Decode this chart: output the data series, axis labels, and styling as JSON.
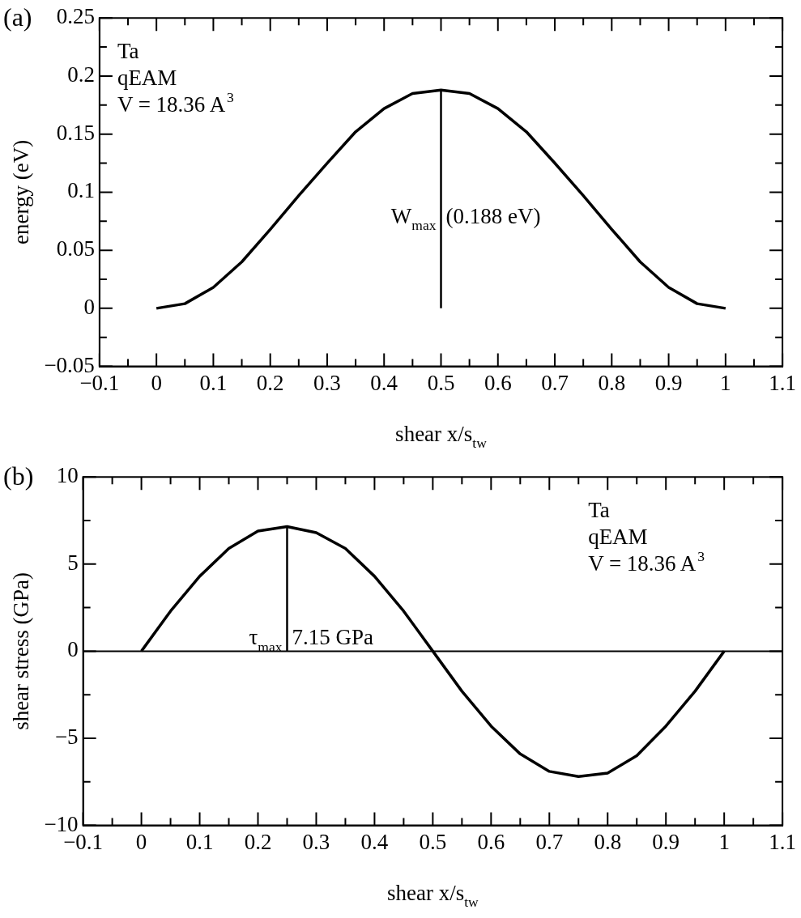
{
  "chart_data": [
    {
      "type": "line",
      "title": "(a)",
      "xlabel": "shear x/s$_{tw}$",
      "ylabel": "energy (eV)",
      "legend": false,
      "grid": false,
      "marker": "none",
      "line_style": "solid",
      "series": [
        {
          "color": "#000000",
          "x": [
            0,
            0.05,
            0.1,
            0.15,
            0.2,
            0.25,
            0.3,
            0.35,
            0.4,
            0.45,
            0.5,
            0.55,
            0.6,
            0.65,
            0.7,
            0.75,
            0.8,
            0.85,
            0.9,
            0.95,
            1
          ],
          "values": [
            0,
            0.004,
            0.018,
            0.04,
            0.068,
            0.097,
            0.125,
            0.152,
            0.172,
            0.185,
            0.188,
            0.185,
            0.172,
            0.152,
            0.125,
            0.097,
            0.068,
            0.04,
            0.018,
            0.004,
            0
          ]
        },
        {
          "color": "#000000",
          "x": [
            0.5,
            0.5
          ],
          "values": [
            0,
            0.188
          ]
        }
      ],
      "xlim": [
        -0.1,
        1.1
      ],
      "xticks": [
        -0.1,
        {
          "value": -0.05,
          "label": null
        },
        0,
        {
          "value": 0.05,
          "label": null
        },
        0.1,
        {
          "value": 0.15,
          "label": null
        },
        0.2,
        {
          "value": 0.25,
          "label": null
        },
        0.3,
        {
          "value": 0.35,
          "label": null
        },
        0.4,
        {
          "value": 0.45,
          "label": null
        },
        0.5,
        {
          "value": 0.55,
          "label": null
        },
        0.6,
        {
          "value": 0.65,
          "label": null
        },
        0.7,
        {
          "value": 0.75,
          "label": null
        },
        0.8,
        {
          "value": 0.85,
          "label": null
        },
        0.9,
        {
          "value": 0.95,
          "label": null
        },
        1,
        {
          "value": 1.05,
          "label": null
        },
        1.1
      ],
      "ylim": [
        -0.05,
        0.25
      ],
      "yticks": [
        -0.05,
        {
          "value": -0.025,
          "label": null
        },
        0,
        {
          "value": 0.025,
          "label": null
        },
        0.05,
        {
          "value": 0.075,
          "label": null
        },
        0.1,
        {
          "value": 0.125,
          "label": null
        },
        0.15,
        {
          "value": 0.175,
          "label": null
        },
        0.2,
        {
          "value": 0.225,
          "label": null
        },
        0.25
      ],
      "annotations": [
        "Ta",
        "qEAM",
        "V = 18.36 A$^{3}$",
        "W$_{max}$",
        "(0.188 eV)"
      ]
    },
    {
      "type": "line",
      "title": "(b)",
      "xlabel": "shear x/s$_{tw}$",
      "ylabel": "shear stress (GPa)",
      "legend": false,
      "grid": false,
      "marker": "none",
      "line_style": "solid",
      "series": [
        {
          "color": "#000000",
          "x": [
            0,
            0.05,
            0.1,
            0.15,
            0.2,
            0.25,
            0.3,
            0.35,
            0.4,
            0.45,
            0.5,
            0.55,
            0.6,
            0.65,
            0.7,
            0.75,
            0.8,
            0.85,
            0.9,
            0.95,
            1
          ],
          "values": [
            0,
            2.3,
            4.3,
            5.9,
            6.9,
            7.15,
            6.8,
            5.9,
            4.3,
            2.3,
            0,
            -2.3,
            -4.3,
            -5.9,
            -6.9,
            -7.2,
            -7,
            -6,
            -4.3,
            -2.3,
            0
          ]
        },
        {
          "color": "#000000",
          "x": [
            0.25,
            0.25
          ],
          "values": [
            0,
            7.15
          ]
        }
      ],
      "ref_lines": [
        {
          "axis": "y",
          "value": 0,
          "color": "#000000"
        }
      ],
      "xlim": [
        -0.1,
        1.1
      ],
      "xticks": [
        -0.1,
        {
          "value": -0.05,
          "label": null
        },
        0,
        {
          "value": 0.05,
          "label": null
        },
        0.1,
        {
          "value": 0.15,
          "label": null
        },
        0.2,
        {
          "value": 0.25,
          "label": null
        },
        0.3,
        {
          "value": 0.35,
          "label": null
        },
        0.4,
        {
          "value": 0.45,
          "label": null
        },
        0.5,
        {
          "value": 0.55,
          "label": null
        },
        0.6,
        {
          "value": 0.65,
          "label": null
        },
        0.7,
        {
          "value": 0.75,
          "label": null
        },
        0.8,
        {
          "value": 0.85,
          "label": null
        },
        0.9,
        {
          "value": 0.95,
          "label": null
        },
        1,
        {
          "value": 1.05,
          "label": null
        },
        1.1
      ],
      "ylim": [
        -10,
        10
      ],
      "yticks": [
        -10,
        {
          "value": -7.5,
          "label": null
        },
        -5,
        {
          "value": -2.5,
          "label": null
        },
        0,
        {
          "value": 2.5,
          "label": null
        },
        5,
        {
          "value": 7.5,
          "label": null
        },
        10
      ],
      "annotations": [
        "Ta",
        "qEAM",
        "V = 18.36 A$^{3}$",
        "τ$_{max}$",
        "7.15 GPa"
      ]
    }
  ]
}
